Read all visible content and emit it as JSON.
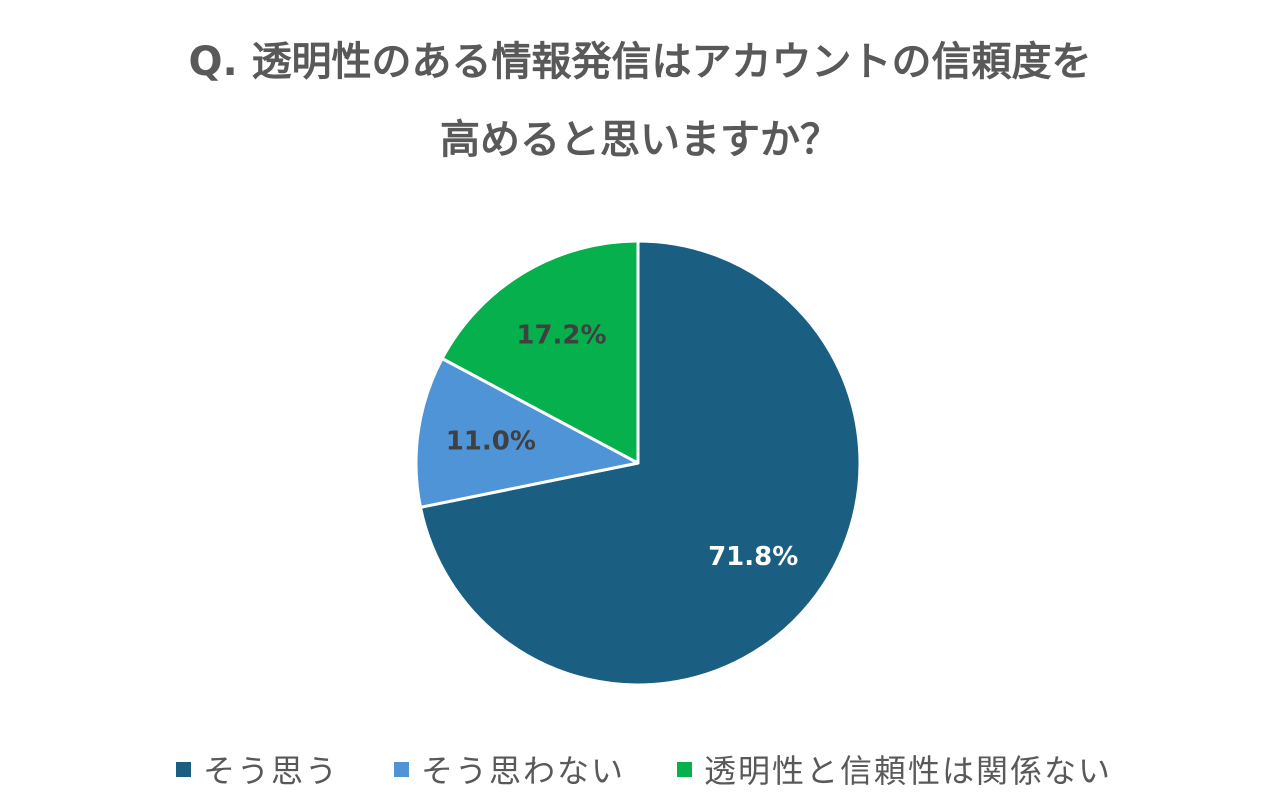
{
  "title": {
    "line1": "Q. 透明性のある情報発信はアカウントの信頼度を",
    "line2": "高めると思いますか？"
  },
  "chart_data": {
    "type": "pie",
    "title": "Q. 透明性のある情報発信はアカウントの信頼度を高めると思いますか？",
    "start_angle": "12 o'clock, clockwise",
    "slices": [
      {
        "label": "そう思う",
        "value": 71.8,
        "value_label": "71.8%",
        "color": "#1a5f82",
        "label_color": "#ffffff"
      },
      {
        "label": "そう思わない",
        "value": 11.0,
        "value_label": "11.0%",
        "color": "#4f94d6",
        "label_color": "#404040"
      },
      {
        "label": "透明性と信頼性は関係ない",
        "value": 17.2,
        "value_label": "17.2%",
        "color": "#06b04d",
        "label_color": "#404040"
      }
    ],
    "legend_position": "bottom"
  }
}
